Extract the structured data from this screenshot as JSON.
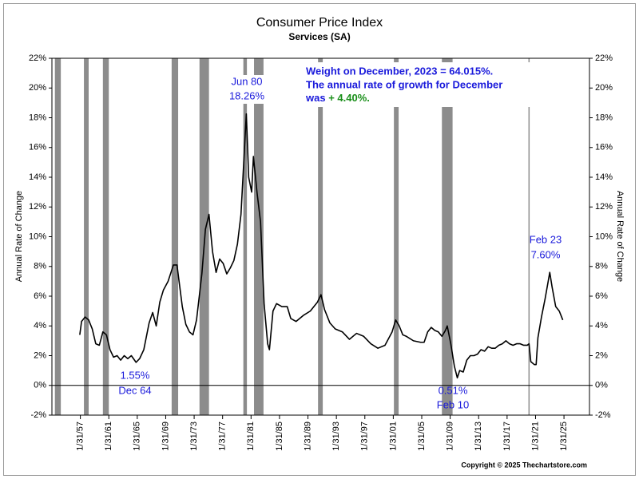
{
  "chart_data": {
    "type": "line",
    "title": "Consumer Price Index",
    "subtitle": "Services (SA)",
    "ylabel": "Annual Rate of Change",
    "y2label": "Annual Rate of Change",
    "color": "#000000",
    "recession_color": "#8c8c8c",
    "grid": false,
    "xlim": [
      "1953-02",
      "2028-09"
    ],
    "xticks": [
      {
        "value": "1957-01-31",
        "label": "1/31/57"
      },
      {
        "value": "1961-01-31",
        "label": "1/31/61"
      },
      {
        "value": "1965-01-31",
        "label": "1/31/65"
      },
      {
        "value": "1969-01-31",
        "label": "1/31/69"
      },
      {
        "value": "1973-01-31",
        "label": "1/31/73"
      },
      {
        "value": "1977-01-31",
        "label": "1/31/77"
      },
      {
        "value": "1981-01-31",
        "label": "1/31/81"
      },
      {
        "value": "1985-01-31",
        "label": "1/31/85"
      },
      {
        "value": "1989-01-31",
        "label": "1/31/89"
      },
      {
        "value": "1993-01-31",
        "label": "1/31/93"
      },
      {
        "value": "1997-01-31",
        "label": "1/31/97"
      },
      {
        "value": "2001-01-31",
        "label": "1/31/01"
      },
      {
        "value": "2005-01-31",
        "label": "1/31/05"
      },
      {
        "value": "2009-01-31",
        "label": "1/31/09"
      },
      {
        "value": "2013-01-31",
        "label": "1/31/13"
      },
      {
        "value": "2017-01-31",
        "label": "1/31/17"
      },
      {
        "value": "2021-01-31",
        "label": "1/31/21"
      },
      {
        "value": "2025-01-31",
        "label": "1/31/25"
      }
    ],
    "ylim": [
      -2,
      22
    ],
    "yticks": [
      {
        "value": -2,
        "label": "-2%"
      },
      {
        "value": 0,
        "label": "0%"
      },
      {
        "value": 2,
        "label": "2%"
      },
      {
        "value": 4,
        "label": "4%"
      },
      {
        "value": 6,
        "label": "6%"
      },
      {
        "value": 8,
        "label": "8%"
      },
      {
        "value": 10,
        "label": "10%"
      },
      {
        "value": 12,
        "label": "12%"
      },
      {
        "value": 14,
        "label": "14%"
      },
      {
        "value": 16,
        "label": "16%"
      },
      {
        "value": 18,
        "label": "18%"
      },
      {
        "value": 20,
        "label": "20%"
      },
      {
        "value": 22,
        "label": "22%"
      }
    ],
    "y2lim": [
      -2,
      22
    ],
    "y2ticks": [
      {
        "value": -2,
        "label": "-2%"
      },
      {
        "value": 0,
        "label": "0%"
      },
      {
        "value": 2,
        "label": "2%"
      },
      {
        "value": 4,
        "label": "4%"
      },
      {
        "value": 6,
        "label": "6%"
      },
      {
        "value": 8,
        "label": "8%"
      },
      {
        "value": 10,
        "label": "10%"
      },
      {
        "value": 12,
        "label": "12%"
      },
      {
        "value": 14,
        "label": "14%"
      },
      {
        "value": 16,
        "label": "16%"
      },
      {
        "value": 18,
        "label": "18%"
      },
      {
        "value": 20,
        "label": "20%"
      },
      {
        "value": 22,
        "label": "22%"
      }
    ],
    "recessions": [
      {
        "start": "1953-07",
        "end": "1954-05"
      },
      {
        "start": "1957-08",
        "end": "1958-04"
      },
      {
        "start": "1960-04",
        "end": "1961-02"
      },
      {
        "start": "1969-12",
        "end": "1970-11"
      },
      {
        "start": "1973-11",
        "end": "1975-03"
      },
      {
        "start": "1980-01",
        "end": "1980-07"
      },
      {
        "start": "1981-07",
        "end": "1982-11"
      },
      {
        "start": "1990-07",
        "end": "1991-03"
      },
      {
        "start": "2001-03",
        "end": "2001-11"
      },
      {
        "start": "2007-12",
        "end": "2009-06"
      },
      {
        "start": "2020-02",
        "end": "2020-04"
      }
    ],
    "x": [
      "1957-01",
      "1957-04",
      "1957-10",
      "1958-04",
      "1958-10",
      "1959-04",
      "1959-10",
      "1960-04",
      "1960-10",
      "1961-04",
      "1961-10",
      "1962-04",
      "1962-10",
      "1963-04",
      "1963-10",
      "1964-04",
      "1964-12",
      "1965-06",
      "1966-01",
      "1966-10",
      "1967-04",
      "1967-10",
      "1968-04",
      "1968-10",
      "1969-06",
      "1970-03",
      "1970-09",
      "1971-06",
      "1971-12",
      "1972-06",
      "1972-12",
      "1973-06",
      "1974-03",
      "1974-09",
      "1975-03",
      "1975-09",
      "1976-03",
      "1976-09",
      "1977-03",
      "1977-09",
      "1978-03",
      "1978-09",
      "1979-03",
      "1979-09",
      "1980-06",
      "1980-10",
      "1981-03",
      "1981-06",
      "1981-12",
      "1982-06",
      "1982-12",
      "1983-06",
      "1983-09",
      "1984-03",
      "1984-09",
      "1985-06",
      "1986-03",
      "1986-09",
      "1987-06",
      "1988-06",
      "1989-06",
      "1990-06",
      "1990-12",
      "1991-06",
      "1992-03",
      "1992-12",
      "1993-12",
      "1994-12",
      "1995-12",
      "1996-12",
      "1997-12",
      "1998-12",
      "1999-12",
      "2000-12",
      "2001-06",
      "2001-12",
      "2002-06",
      "2002-12",
      "2003-12",
      "2004-12",
      "2005-06",
      "2005-12",
      "2006-06",
      "2006-12",
      "2007-06",
      "2007-12",
      "2008-06",
      "2008-09",
      "2009-03",
      "2009-09",
      "2010-02",
      "2010-06",
      "2010-12",
      "2011-06",
      "2011-12",
      "2012-06",
      "2012-12",
      "2013-06",
      "2013-12",
      "2014-06",
      "2014-12",
      "2015-06",
      "2015-12",
      "2016-06",
      "2016-12",
      "2017-06",
      "2017-12",
      "2018-06",
      "2018-12",
      "2019-06",
      "2019-12",
      "2020-03",
      "2020-06",
      "2020-12",
      "2021-03",
      "2021-06",
      "2021-12",
      "2022-06",
      "2023-02",
      "2023-06",
      "2023-12",
      "2024-06",
      "2024-09",
      "2024-12"
    ],
    "values": [
      3.4,
      4.3,
      4.6,
      4.4,
      3.8,
      2.8,
      2.7,
      3.6,
      3.4,
      2.4,
      1.9,
      2.0,
      1.7,
      2.0,
      1.8,
      2.0,
      1.55,
      1.8,
      2.4,
      4.2,
      4.9,
      4.0,
      5.6,
      6.4,
      7.0,
      8.1,
      8.1,
      5.3,
      4.1,
      3.6,
      3.4,
      4.4,
      7.5,
      10.5,
      11.5,
      9.0,
      7.6,
      8.5,
      8.2,
      7.5,
      7.9,
      8.4,
      9.5,
      11.5,
      18.26,
      14.0,
      13.0,
      15.4,
      13.0,
      11.0,
      5.5,
      2.8,
      2.4,
      5.0,
      5.5,
      5.3,
      5.3,
      4.5,
      4.3,
      4.7,
      5.0,
      5.6,
      6.1,
      5.1,
      4.2,
      3.8,
      3.6,
      3.1,
      3.5,
      3.3,
      2.8,
      2.5,
      2.7,
      3.6,
      4.4,
      4.0,
      3.4,
      3.3,
      3.0,
      2.9,
      2.9,
      3.6,
      3.9,
      3.7,
      3.6,
      3.3,
      3.7,
      4.0,
      2.8,
      1.3,
      0.51,
      1.0,
      0.9,
      1.7,
      2.0,
      2.0,
      2.1,
      2.4,
      2.3,
      2.6,
      2.5,
      2.5,
      2.7,
      2.8,
      3.0,
      2.8,
      2.7,
      2.8,
      2.8,
      2.7,
      2.7,
      2.8,
      1.6,
      1.4,
      1.4,
      3.2,
      4.6,
      5.8,
      7.6,
      6.6,
      5.3,
      5.0,
      4.7,
      4.4
    ],
    "annotations": [
      "Jun 80",
      "18.26%",
      "1.55%",
      "Dec 64",
      "0.51%",
      "Feb 10",
      "Feb 23",
      "7.60%"
    ],
    "note": [
      "Weight on December, 2023 = 64.015%.",
      "The annual rate of growth for December",
      "was "
    ],
    "note_highlight": "+ 4.40%.",
    "copyright": "Copyright © 2025 Thechartstore.com"
  }
}
